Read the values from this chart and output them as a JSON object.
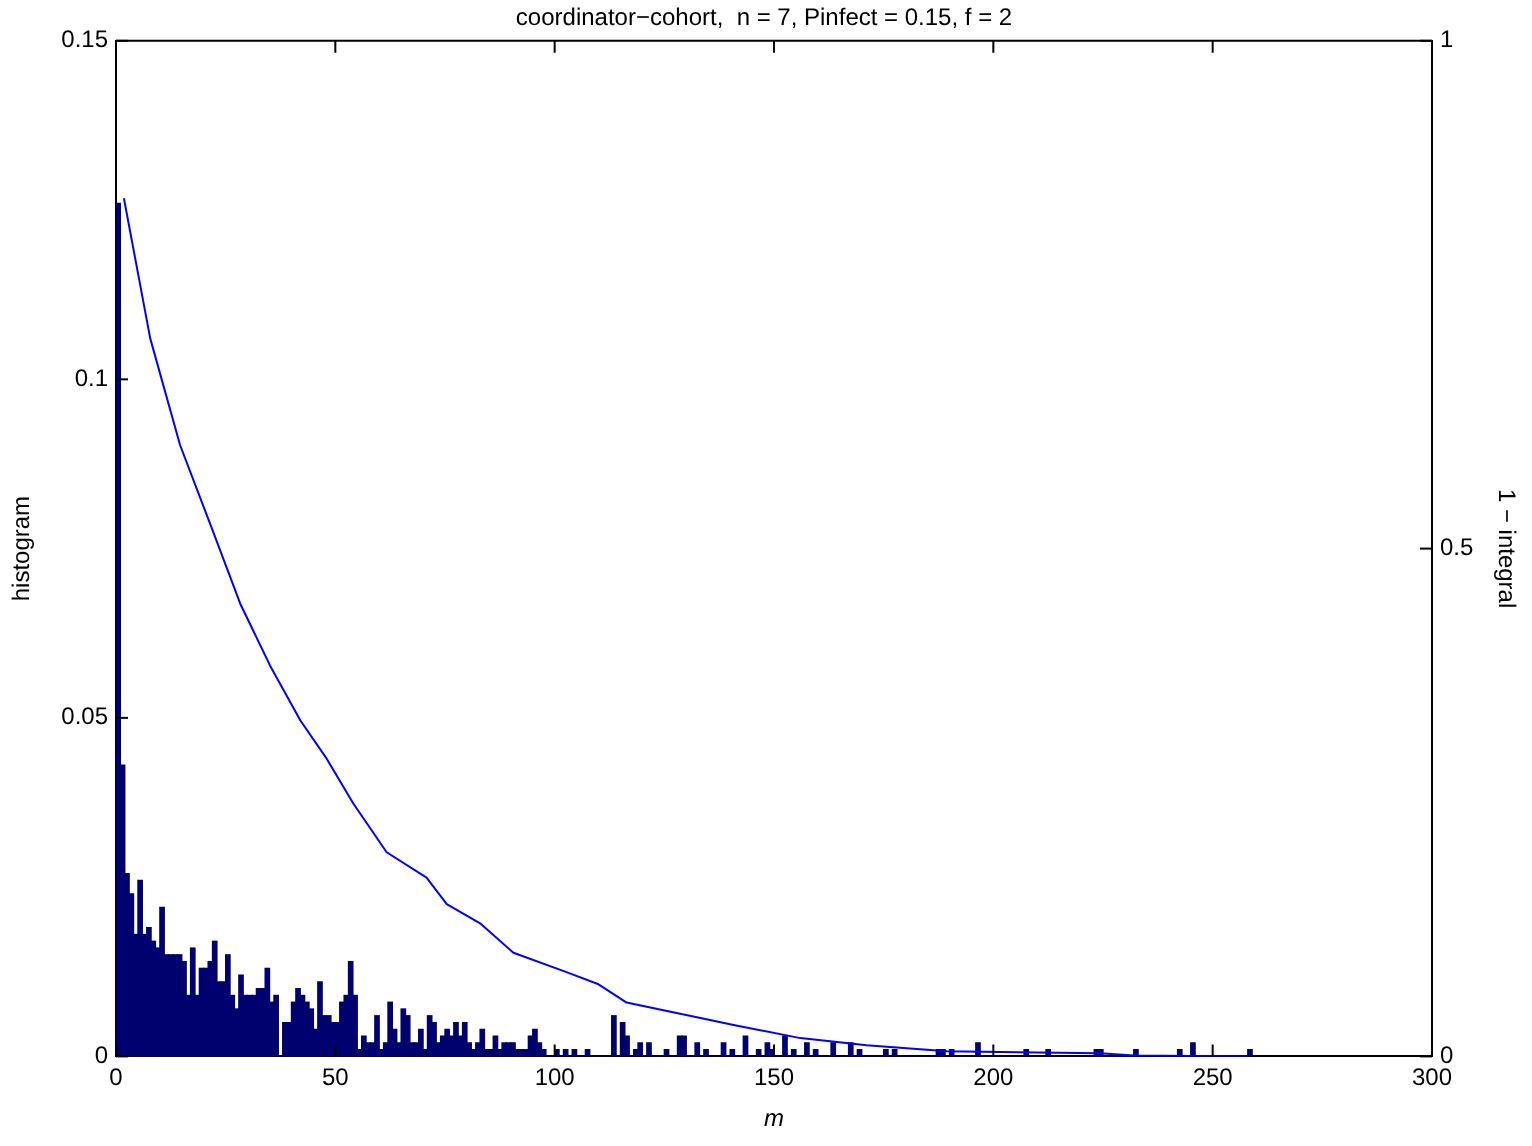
{
  "chart_data": {
    "type": "histogram",
    "title": "coordinator−cohort,  n = 7, Pinfect = 0.15, f = 2",
    "xlabel": "m",
    "ylabel": "histogram",
    "y2label": "1 − integral",
    "xlim": [
      0,
      300
    ],
    "xticks": [
      0,
      50,
      100,
      150,
      200,
      250,
      300
    ],
    "ylim": [
      0,
      0.15
    ],
    "yticks": [
      0,
      0.05,
      0.1,
      0.15
    ],
    "y2lim": [
      0,
      1
    ],
    "y2ticks": [
      0,
      0.5,
      1
    ],
    "grid": false,
    "legend": false,
    "series": [
      {
        "color": "#00006e",
        "bins": [
          0,
          1,
          2,
          3,
          4,
          5,
          6,
          7,
          8,
          9,
          10,
          11,
          12,
          13,
          14,
          15,
          16,
          17,
          18,
          19,
          20,
          21,
          22,
          23,
          24,
          25,
          26,
          27,
          28,
          29,
          30,
          31,
          32,
          33,
          34,
          35,
          36,
          37,
          38,
          39,
          40,
          41,
          42,
          43,
          44,
          45,
          46,
          47,
          48,
          49,
          50,
          51,
          52,
          53,
          54,
          55,
          56,
          57,
          58,
          59,
          60,
          61,
          62,
          63,
          64,
          65,
          66,
          67,
          68,
          69,
          70,
          71,
          72,
          73,
          74,
          75,
          76,
          77,
          78,
          79,
          80,
          81,
          82,
          83,
          84,
          85,
          86,
          87,
          88,
          89,
          90,
          91,
          92,
          93,
          94,
          95,
          96,
          97,
          98,
          99,
          100,
          101,
          102,
          103,
          104,
          105,
          106,
          107,
          108,
          109,
          110,
          111,
          112,
          113,
          114,
          115,
          116,
          117,
          118,
          119,
          120,
          121,
          122,
          123,
          124,
          125,
          126,
          127,
          128,
          129,
          130,
          131,
          132,
          133,
          134,
          135,
          136,
          137,
          138,
          139,
          140,
          141,
          142,
          143,
          144,
          145,
          146,
          147,
          148,
          149,
          150,
          151,
          152,
          153,
          154,
          155,
          156,
          157,
          158,
          159,
          160,
          161,
          162,
          163,
          164,
          165,
          166,
          167,
          168,
          169,
          170,
          171,
          172,
          173,
          174,
          175,
          176,
          177,
          178,
          179,
          180,
          181,
          182,
          183,
          184,
          185,
          186,
          187,
          188,
          189,
          190,
          191,
          192,
          193,
          194,
          195,
          196,
          197,
          198,
          199,
          200,
          201,
          202,
          203,
          204,
          205,
          206,
          207,
          208,
          209,
          210,
          211,
          212,
          213,
          214,
          215,
          216,
          217,
          218,
          219,
          220,
          221,
          222,
          223,
          224,
          225,
          226,
          227,
          228,
          229,
          230,
          231,
          232,
          233,
          234,
          235,
          236,
          237,
          238,
          239,
          240,
          241,
          242,
          243,
          244,
          245,
          246,
          247,
          248,
          249,
          250,
          251,
          252,
          253,
          254,
          255,
          256,
          257,
          258,
          259
        ],
        "values": [
          0.126,
          0.043,
          0.027,
          0.024,
          0.018,
          0.026,
          0.018,
          0.019,
          0.017,
          0.016,
          0.022,
          0.015,
          0.015,
          0.015,
          0.015,
          0.014,
          0.009,
          0.016,
          0.009,
          0.013,
          0.013,
          0.014,
          0.017,
          0.011,
          0.011,
          0.015,
          0.009,
          0.007,
          0.012,
          0.009,
          0.009,
          0.009,
          0.01,
          0.01,
          0.013,
          0.008,
          0.009,
          0,
          0.005,
          0.005,
          0.008,
          0.01,
          0.009,
          0.008,
          0.007,
          0.004,
          0.011,
          0.006,
          0.006,
          0.005,
          0.005,
          0.008,
          0.009,
          0.014,
          0.009,
          0.001,
          0.003,
          0.002,
          0.002,
          0.006,
          0.001,
          0.002,
          0.008,
          0.004,
          0.002,
          0.007,
          0.006,
          0.002,
          0.002,
          0.004,
          0.001,
          0.006,
          0.005,
          0.002,
          0.003,
          0.004,
          0.003,
          0.005,
          0.003,
          0.005,
          0.002,
          0.001,
          0.002,
          0.004,
          0.001,
          0.001,
          0.003,
          0.001,
          0.002,
          0.002,
          0.002,
          0.001,
          0.001,
          0.001,
          0.003,
          0.004,
          0.002,
          0.001,
          0,
          0,
          0.001,
          0,
          0.001,
          0,
          0.001,
          0,
          0,
          0.001,
          0,
          0,
          0,
          0,
          0,
          0.006,
          0,
          0.005,
          0.003,
          0,
          0.001,
          0.002,
          0,
          0.002,
          0,
          0,
          0,
          0.001,
          0,
          0,
          0.003,
          0.003,
          0,
          0,
          0.002,
          0,
          0.001,
          0,
          0,
          0,
          0.002,
          0,
          0.001,
          0,
          0,
          0.003,
          0,
          0,
          0.001,
          0,
          0.002,
          0.001,
          0,
          0,
          0.003,
          0,
          0.001,
          0,
          0,
          0.002,
          0,
          0.001,
          0,
          0,
          0,
          0.002,
          0,
          0,
          0,
          0.002,
          0,
          0.001,
          0,
          0,
          0,
          0,
          0,
          0.001,
          0,
          0.001,
          0,
          0,
          0,
          0,
          0,
          0,
          0,
          0,
          0,
          0.001,
          0.001,
          0,
          0.001,
          0,
          0,
          0,
          0,
          0,
          0.002,
          0,
          0,
          0,
          0,
          0,
          0,
          0,
          0,
          0,
          0,
          0.001,
          0,
          0,
          0,
          0,
          0.001,
          0,
          0,
          0,
          0,
          0,
          0,
          0,
          0,
          0,
          0,
          0.001,
          0.001,
          0,
          0,
          0,
          0,
          0,
          0,
          0,
          0.001,
          0,
          0,
          0,
          0,
          0,
          0,
          0,
          0,
          0,
          0.001,
          0,
          0,
          0.002,
          0,
          0,
          0,
          0,
          0,
          0,
          0,
          0,
          0,
          0,
          0,
          0,
          0.001
        ]
      },
      {
        "type": "line",
        "axis": "y2",
        "color": "#0000ff",
        "x": [
          1.8,
          7.8,
          14.6,
          21.4,
          28.3,
          35.1,
          42,
          47.9,
          54.1,
          61.7,
          70.8,
          75.4,
          83,
          90.6,
          102.7,
          110,
          116.4,
          128.6,
          140.8,
          156,
          171.1,
          189.4,
          224.3,
          232,
          258
        ],
        "values": [
          0.845,
          0.707,
          0.602,
          0.525,
          0.446,
          0.385,
          0.331,
          0.294,
          0.249,
          0.201,
          0.176,
          0.15,
          0.131,
          0.102,
          0.083,
          0.071,
          0.053,
          0.042,
          0.031,
          0.018,
          0.011,
          0.005,
          0.003,
          0.001,
          0
        ]
      }
    ]
  }
}
